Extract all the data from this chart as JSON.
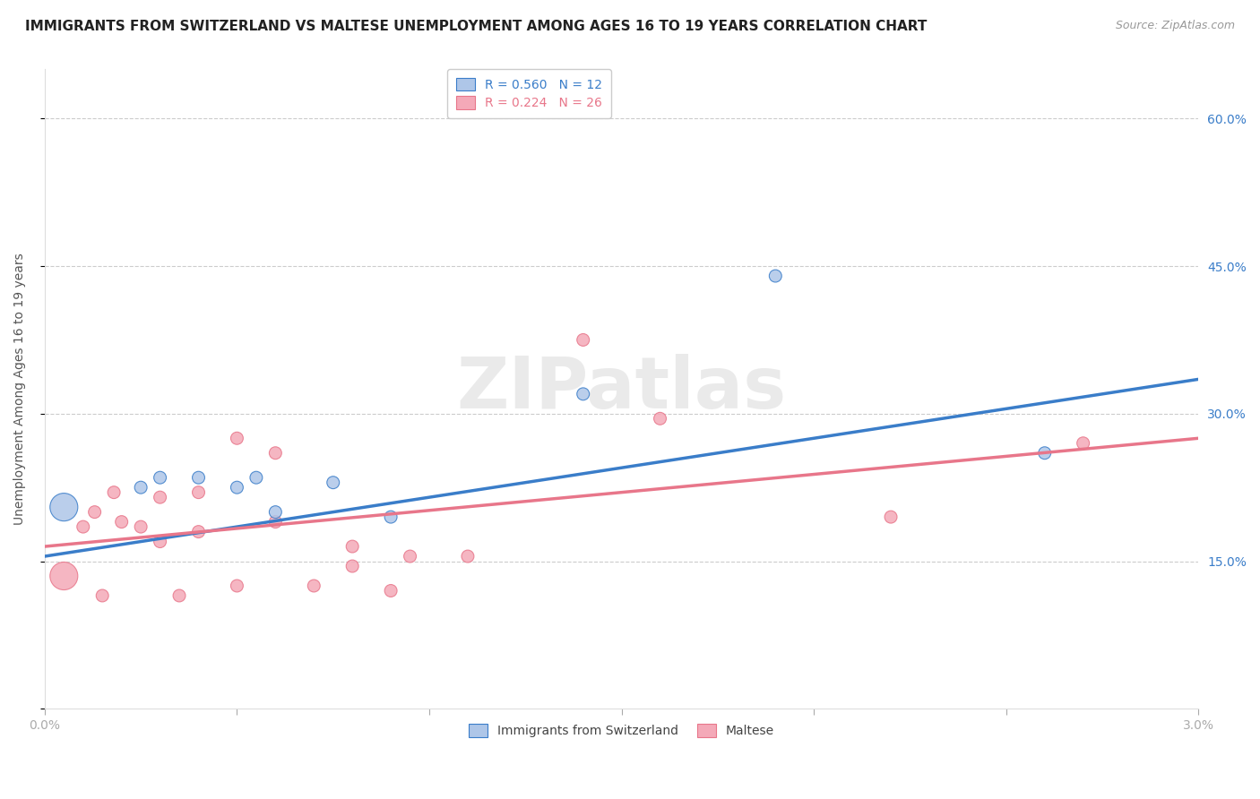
{
  "title": "IMMIGRANTS FROM SWITZERLAND VS MALTESE UNEMPLOYMENT AMONG AGES 16 TO 19 YEARS CORRELATION CHART",
  "source": "Source: ZipAtlas.com",
  "ylabel": "Unemployment Among Ages 16 to 19 years",
  "xlim": [
    0.0,
    0.03
  ],
  "ylim": [
    0.0,
    0.65
  ],
  "xticks": [
    0.0,
    0.005,
    0.01,
    0.015,
    0.02,
    0.025,
    0.03
  ],
  "xticklabels": [
    "0.0%",
    "",
    "",
    "",
    "",
    "",
    "3.0%"
  ],
  "yticks": [
    0.0,
    0.15,
    0.3,
    0.45,
    0.6
  ],
  "yticklabels_right": [
    "",
    "15.0%",
    "30.0%",
    "45.0%",
    "60.0%"
  ],
  "legend1_label": "R = 0.560   N = 12",
  "legend2_label": "R = 0.224   N = 26",
  "legend1_color": "#aec6e8",
  "legend2_color": "#f4a9b8",
  "watermark": "ZIPatlas",
  "bg_color": "#ffffff",
  "grid_color": "#cccccc",
  "blue_scatter_x": [
    0.0005,
    0.0025,
    0.003,
    0.004,
    0.005,
    0.0055,
    0.006,
    0.0075,
    0.009,
    0.014,
    0.019,
    0.026
  ],
  "blue_scatter_y": [
    0.205,
    0.225,
    0.235,
    0.235,
    0.225,
    0.235,
    0.2,
    0.23,
    0.195,
    0.32,
    0.44,
    0.26
  ],
  "blue_scatter_size": [
    500,
    100,
    100,
    100,
    100,
    100,
    100,
    100,
    100,
    100,
    100,
    100
  ],
  "pink_scatter_x": [
    0.0005,
    0.001,
    0.0013,
    0.0015,
    0.0018,
    0.002,
    0.0025,
    0.003,
    0.003,
    0.0035,
    0.004,
    0.004,
    0.005,
    0.005,
    0.006,
    0.006,
    0.007,
    0.008,
    0.008,
    0.009,
    0.0095,
    0.011,
    0.014,
    0.016,
    0.022,
    0.027
  ],
  "pink_scatter_y": [
    0.135,
    0.185,
    0.2,
    0.115,
    0.22,
    0.19,
    0.185,
    0.215,
    0.17,
    0.115,
    0.22,
    0.18,
    0.275,
    0.125,
    0.26,
    0.19,
    0.125,
    0.145,
    0.165,
    0.12,
    0.155,
    0.155,
    0.375,
    0.295,
    0.195,
    0.27
  ],
  "pink_scatter_size": [
    500,
    100,
    100,
    100,
    100,
    100,
    100,
    100,
    100,
    100,
    100,
    100,
    100,
    100,
    100,
    100,
    100,
    100,
    100,
    100,
    100,
    100,
    100,
    100,
    100,
    100
  ],
  "blue_line_x": [
    0.0,
    0.03
  ],
  "blue_line_y": [
    0.155,
    0.335
  ],
  "pink_line_x": [
    0.0,
    0.03
  ],
  "pink_line_y": [
    0.165,
    0.275
  ],
  "blue_line_color": "#3a7dc9",
  "pink_line_color": "#e8768a",
  "blue_dot_color": "#aec6e8",
  "pink_dot_color": "#f4a9b8",
  "title_fontsize": 11,
  "source_fontsize": 9,
  "label_fontsize": 10,
  "tick_fontsize": 10,
  "legend_fontsize": 10
}
